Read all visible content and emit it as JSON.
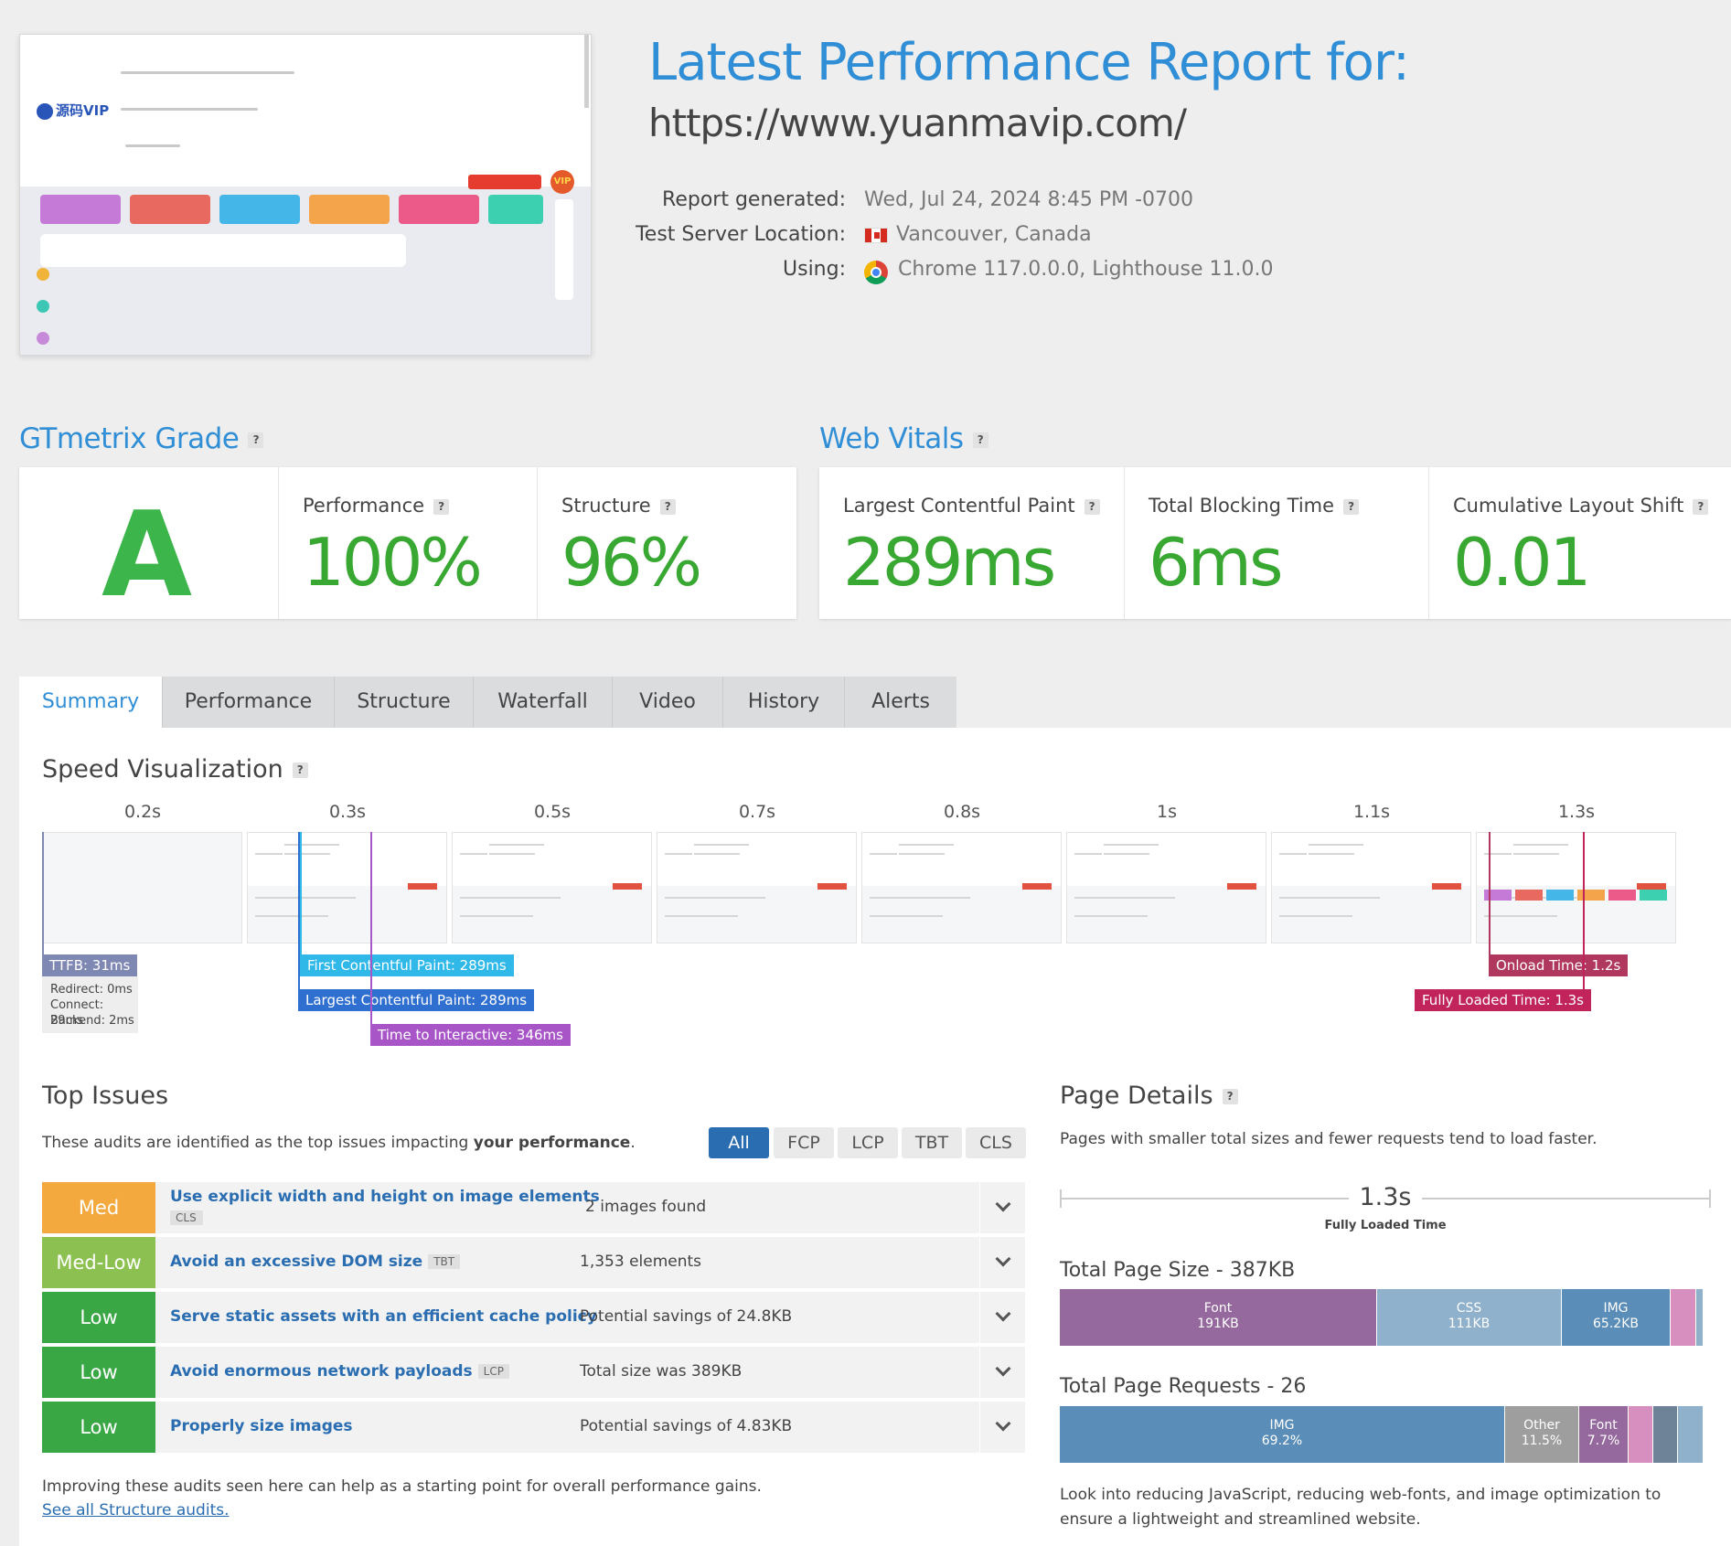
{
  "header": {
    "title": "Latest Performance Report for:",
    "url": "https://www.yuanmavip.com/"
  },
  "meta": {
    "generated_label": "Report generated:",
    "generated_value": "Wed, Jul 24, 2024 8:45 PM -0700",
    "location_label": "Test Server Location:",
    "location_value": "Vancouver, Canada",
    "using_label": "Using:",
    "using_value": "Chrome 117.0.0.0, Lighthouse 11.0.0"
  },
  "thumbnail": {
    "logo_text": "源码VIP",
    "badge": "VIP"
  },
  "grade": {
    "heading": "GTmetrix Grade",
    "letter": "A",
    "performance_label": "Performance",
    "performance_value": "100%",
    "structure_label": "Structure",
    "structure_value": "96%"
  },
  "vitals": {
    "heading": "Web Vitals",
    "lcp_label": "Largest Contentful Paint",
    "lcp_value": "289ms",
    "tbt_label": "Total Blocking Time",
    "tbt_value": "6ms",
    "cls_label": "Cumulative Layout Shift",
    "cls_value": "0.01"
  },
  "tabs": [
    "Summary",
    "Performance",
    "Structure",
    "Waterfall",
    "Video",
    "History",
    "Alerts"
  ],
  "speed": {
    "heading": "Speed Visualization",
    "ticks": [
      "0.2s",
      "0.3s",
      "0.5s",
      "0.7s",
      "0.8s",
      "1s",
      "1.1s",
      "1.3s"
    ],
    "ttfb": "TTFB: 31ms",
    "redirect": "Redirect: 0ms",
    "connect": "Connect: 29ms",
    "backend": "Backend: 2ms",
    "fcp": "First Contentful Paint: 289ms",
    "lcp": "Largest Contentful Paint: 289ms",
    "tti": "Time to Interactive: 346ms",
    "onload": "Onload Time: 1.2s",
    "fully_loaded": "Fully Loaded Time: 1.3s"
  },
  "issues": {
    "heading": "Top Issues",
    "intro": "These audits are identified as the top issues impacting ",
    "intro_bold": "your performance",
    "intro_end": ".",
    "filters": [
      "All",
      "FCP",
      "LCP",
      "TBT",
      "CLS"
    ],
    "rows": [
      {
        "severity": "Med",
        "title": "Use explicit width and height on image elements",
        "tag": "CLS",
        "detail": "2 images found",
        "color": "#f3a93e"
      },
      {
        "severity": "Med-Low",
        "title": "Avoid an excessive DOM size",
        "tag": "TBT",
        "detail": "1,353 elements",
        "color": "#8cc152"
      },
      {
        "severity": "Low",
        "title": "Serve static assets with an efficient cache policy",
        "tag": "",
        "detail": "Potential savings of 24.8KB",
        "color": "#3aa745"
      },
      {
        "severity": "Low",
        "title": "Avoid enormous network payloads",
        "tag": "LCP",
        "detail": "Total size was 389KB",
        "color": "#3aa745"
      },
      {
        "severity": "Low",
        "title": "Properly size images",
        "tag": "",
        "detail": "Potential savings of 4.83KB",
        "color": "#3aa745"
      }
    ],
    "footer": "Improving these audits seen here can help as a starting point for overall performance gains.",
    "link": "See all Structure audits."
  },
  "details": {
    "heading": "Page Details",
    "intro": "Pages with smaller total sizes and fewer requests tend to load faster.",
    "loaded_value": "1.3s",
    "loaded_label": "Fully Loaded Time",
    "size_title": "Total Page Size - 387KB",
    "size_segments": [
      {
        "label": "Font",
        "value": "191KB",
        "fraction": 0.493,
        "color": "#96699e"
      },
      {
        "label": "CSS",
        "value": "111KB",
        "fraction": 0.287,
        "color": "#8fb1cc"
      },
      {
        "label": "IMG",
        "value": "65.2KB",
        "fraction": 0.169,
        "color": "#5a8db7"
      },
      {
        "label": "",
        "value": "",
        "fraction": 0.04,
        "color": "#d78fc0"
      },
      {
        "label": "",
        "value": "",
        "fraction": 0.011,
        "color": "#8fb1cc"
      }
    ],
    "req_title": "Total Page Requests - 26",
    "req_segments": [
      {
        "label": "IMG",
        "value": "69.2%",
        "fraction": 0.692,
        "color": "#5a8db7"
      },
      {
        "label": "Other",
        "value": "11.5%",
        "fraction": 0.115,
        "color": "#9e9e9e"
      },
      {
        "label": "Font",
        "value": "7.7%",
        "fraction": 0.077,
        "color": "#96699e"
      },
      {
        "label": "",
        "value": "",
        "fraction": 0.038,
        "color": "#d78fc0"
      },
      {
        "label": "",
        "value": "",
        "fraction": 0.038,
        "color": "#6e8398"
      },
      {
        "label": "",
        "value": "",
        "fraction": 0.04,
        "color": "#8fb1cc"
      }
    ],
    "outro": "Look into reducing JavaScript, reducing web-fonts, and image optimization to ensure a lightweight and streamlined website."
  }
}
